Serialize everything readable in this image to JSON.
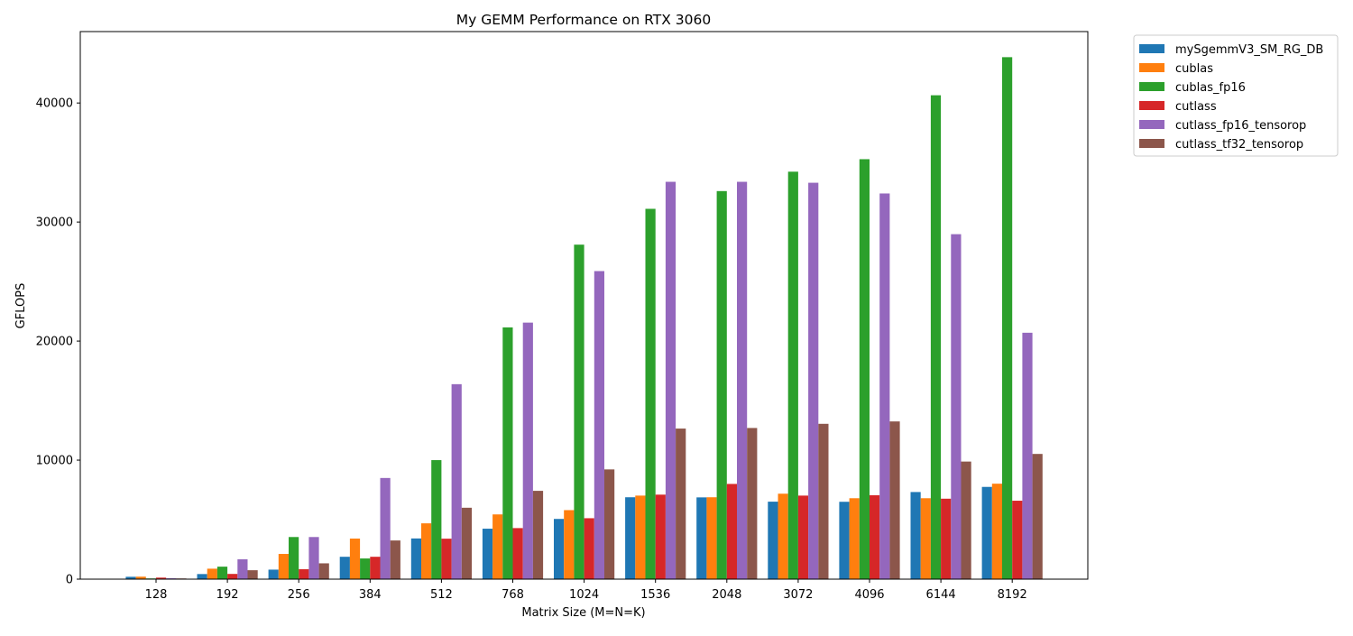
{
  "chart_data": {
    "type": "bar",
    "title": "My GEMM Performance on RTX 3060",
    "xlabel": "Matrix Size (M=N=K)",
    "ylabel": "GFLOPS",
    "ylim": [
      0,
      46000
    ],
    "yticks": [
      0,
      10000,
      20000,
      30000,
      40000
    ],
    "ytick_labels": [
      "0",
      "10000",
      "20000",
      "30000",
      "40000"
    ],
    "categories": [
      "128",
      "192",
      "256",
      "384",
      "512",
      "768",
      "1024",
      "1536",
      "2048",
      "3072",
      "4096",
      "6144",
      "8192"
    ],
    "legend_position": "outside top-right",
    "grid": false,
    "series": [
      {
        "name": "mySgemmV3_SM_RG_DB",
        "color": "#1f77b4",
        "values": [
          200,
          430,
          800,
          1880,
          3420,
          4240,
          5060,
          6880,
          6870,
          6510,
          6500,
          7320,
          7750
        ]
      },
      {
        "name": "cublas",
        "color": "#ff7f0e",
        "values": [
          210,
          880,
          2120,
          3410,
          4690,
          5440,
          5800,
          7020,
          6880,
          7180,
          6800,
          6800,
          8020
        ]
      },
      {
        "name": "cublas_fp16",
        "color": "#2ca02c",
        "values": [
          60,
          1050,
          3540,
          1740,
          10000,
          21150,
          28100,
          31110,
          32600,
          34230,
          35280,
          40650,
          43850
        ]
      },
      {
        "name": "cutlass",
        "color": "#d62728",
        "values": [
          130,
          440,
          840,
          1880,
          3400,
          4290,
          5120,
          7100,
          8000,
          7020,
          7050,
          6760,
          6590
        ]
      },
      {
        "name": "cutlass_fp16_tensorop",
        "color": "#9467bd",
        "values": [
          80,
          1670,
          3540,
          8500,
          16380,
          21550,
          25880,
          33380,
          33380,
          33300,
          32400,
          28980,
          20700
        ]
      },
      {
        "name": "cutlass_tf32_tensorop",
        "color": "#8c564b",
        "values": [
          60,
          750,
          1330,
          3250,
          6000,
          7420,
          9220,
          12650,
          12700,
          13050,
          13250,
          9880,
          10520
        ]
      }
    ]
  }
}
